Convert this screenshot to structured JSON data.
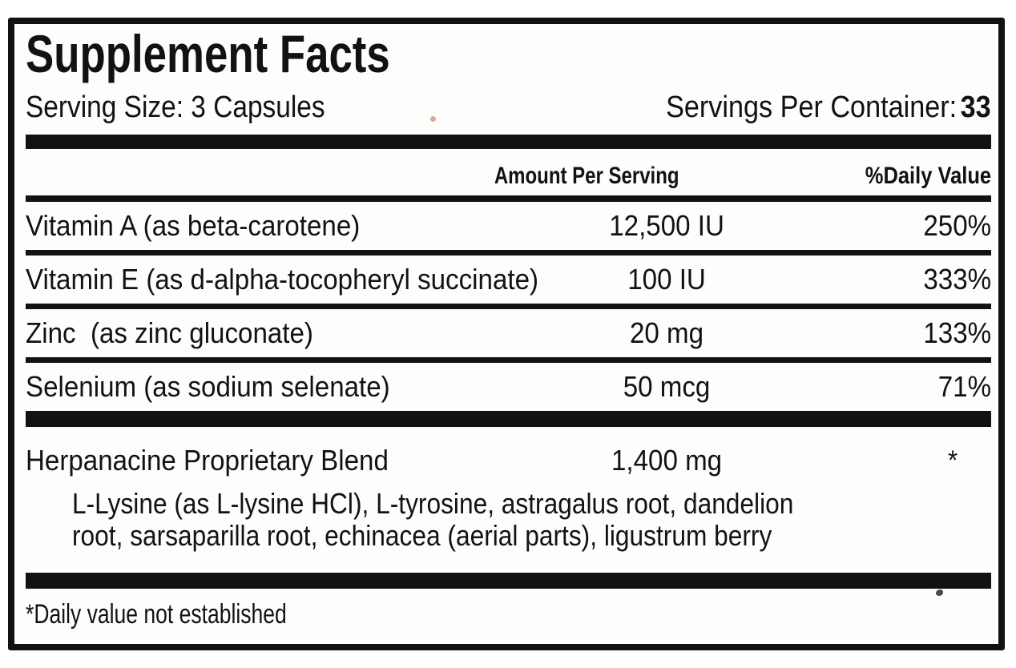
{
  "panel": {
    "title": "Supplement Facts",
    "serving_size": "Serving Size: 3 Capsules",
    "servings_per_container": {
      "label": "Servings Per Container:",
      "value": "33"
    },
    "columns": {
      "amount": "Amount Per Serving",
      "daily_value": "%Daily Value"
    },
    "nutrients": [
      {
        "name": "Vitamin A (as beta-carotene)",
        "amount": "12,500 IU",
        "daily_value": "250%"
      },
      {
        "name": "Vitamin E (as d-alpha-tocopheryl succinate)",
        "amount": "100 IU",
        "daily_value": "333%"
      },
      {
        "name": "Zinc  (as zinc gluconate)",
        "amount": "20 mg",
        "daily_value": "133%"
      },
      {
        "name": "Selenium (as sodium selenate)",
        "amount": "50 mcg",
        "daily_value": "71%"
      }
    ],
    "proprietary_blend": {
      "name": "Herpanacine Proprietary Blend",
      "amount": "1,400 mg",
      "daily_value": "*",
      "ingredients_line1": "L-Lysine (as L-lysine HCl), L-tyrosine, astragalus root, dandelion",
      "ingredients_line2": "root, sarsaparilla root, echinacea (aerial parts), ligustrum berry"
    },
    "footnote": "*Daily value not established",
    "colors": {
      "ink": "#121212",
      "paper": "#fdfdfb"
    }
  }
}
